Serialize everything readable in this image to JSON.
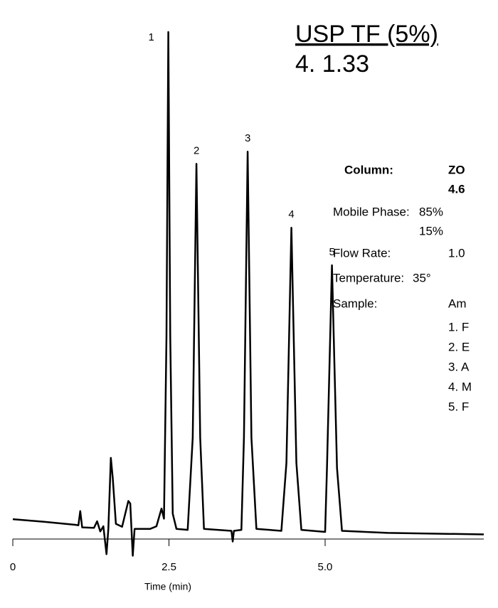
{
  "chart_data": {
    "type": "line",
    "header": {
      "title": "USP TF (5%)",
      "result": "4.  1.33",
      "color": "#333399"
    },
    "conditions": [
      {
        "label": "Column:",
        "lines": [
          "ZO",
          "4.6"
        ],
        "bold": true
      },
      {
        "label": "Mobile Phase:",
        "lines": [
          "85%",
          "15%"
        ]
      },
      {
        "label": "Flow Rate:",
        "lines": [
          "1.0"
        ]
      },
      {
        "label": "Temperature:",
        "lines": [
          "35°"
        ]
      },
      {
        "label": "Sample:",
        "lines": [
          "Am",
          "1. F",
          "2. E",
          "3. A",
          "4. M",
          "5. F"
        ]
      }
    ],
    "xlabel": "Time (min)",
    "xlim": [
      0,
      7.54
    ],
    "xticks": [
      0,
      2.5,
      {
        "value": 5,
        "label": "5.0"
      }
    ],
    "ylim": [
      -5,
      100
    ],
    "color": "#000000",
    "x": [
      0,
      0.5,
      1.0,
      1.05,
      1.08,
      1.11,
      1.3,
      1.35,
      1.4,
      1.45,
      1.5,
      1.53,
      1.57,
      1.6,
      1.65,
      1.75,
      1.85,
      1.88,
      1.92,
      1.95,
      2.2,
      2.3,
      2.38,
      2.42,
      2.46,
      2.49,
      2.52,
      2.56,
      2.62,
      2.8,
      2.88,
      2.94,
      3.0,
      3.06,
      3.5,
      3.52,
      3.54,
      3.66,
      3.7,
      3.76,
      3.82,
      3.9,
      4.3,
      4.38,
      4.46,
      4.54,
      4.62,
      5.0,
      5.03,
      5.11,
      5.19,
      5.27,
      6.0,
      7.54
    ],
    "values": [
      3.9,
      3.4,
      2.8,
      2.7,
      5.5,
      2.3,
      2.2,
      3.5,
      1.5,
      2.5,
      -3,
      2,
      16,
      12,
      3,
      2.4,
      7.5,
      7,
      -3.3,
      2,
      2.0,
      2.5,
      6,
      4,
      40,
      100,
      40,
      5,
      2,
      1.8,
      20,
      74,
      20,
      2,
      1.6,
      -0.5,
      1.6,
      1.8,
      20,
      76.4,
      20,
      2,
      1.6,
      15,
      61.4,
      15,
      1.8,
      1.4,
      14,
      54,
      14,
      1.6,
      1.2,
      0.9
    ],
    "peaks": [
      {
        "label": "1",
        "x": 2.49,
        "y": 100
      },
      {
        "label": "2",
        "x": 2.94,
        "y": 74
      },
      {
        "label": "3",
        "x": 3.76,
        "y": 76.4
      },
      {
        "label": "4",
        "x": 4.46,
        "y": 61.4
      },
      {
        "label": "5",
        "x": 5.11,
        "y": 54
      }
    ]
  }
}
